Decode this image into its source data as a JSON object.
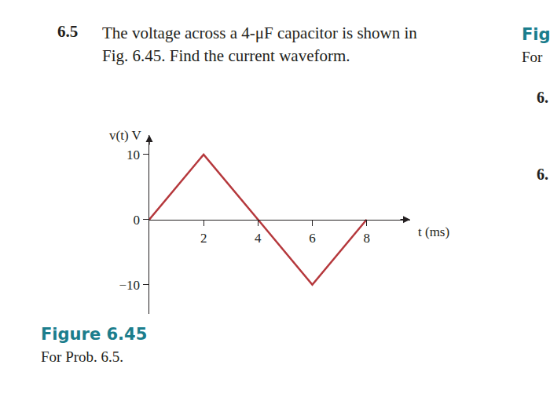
{
  "problem": {
    "number": "6.5",
    "lines": [
      "The voltage across a 4-μF capacitor is shown in",
      "Fig. 6.45. Find the current waveform."
    ]
  },
  "figure": {
    "label": "Figure 6.45",
    "caption": "For Prob. 6.5."
  },
  "margin_fragments": [
    "Fig",
    "For",
    "6.",
    "6."
  ],
  "chart_data": {
    "type": "line",
    "x": [
      0,
      2,
      4,
      6,
      8
    ],
    "values": [
      0,
      10,
      0,
      -10,
      0
    ],
    "color": "#b5383c",
    "xlabel": "t (ms)",
    "ylabel": "v(t) V",
    "xlim": [
      0,
      9.6
    ],
    "ylim": [
      -14.5,
      13
    ],
    "xticks": [
      2,
      4,
      6,
      8
    ],
    "yticks": [
      {
        "value": -10,
        "label": "−10"
      },
      0,
      10
    ],
    "grid": false
  }
}
